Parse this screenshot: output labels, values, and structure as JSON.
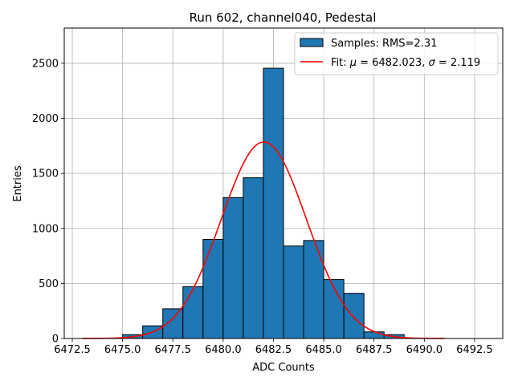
{
  "chart_data": {
    "type": "bar",
    "title": "Run 602, channel040, Pedestal",
    "xlabel": "ADC Counts",
    "ylabel": "Entries",
    "xlim": [
      6472.1,
      6493.9
    ],
    "ylim": [
      0,
      2820
    ],
    "xticks": [
      6472.5,
      6475.0,
      6477.5,
      6480.0,
      6482.5,
      6485.0,
      6487.5,
      6490.0,
      6492.5
    ],
    "xtick_labels": [
      "6472.5",
      "6475.0",
      "6477.5",
      "6480.0",
      "6482.5",
      "6485.0",
      "6487.5",
      "6490.0",
      "6492.5"
    ],
    "yticks": [
      0,
      500,
      1000,
      1500,
      2000,
      2500
    ],
    "ytick_labels": [
      "0",
      "500",
      "1000",
      "1500",
      "2000",
      "2500"
    ],
    "grid": true,
    "legend_position": "top-right",
    "histogram": {
      "name": "Samples: RMS=2.31",
      "color": "#1f77b4",
      "edge_color": "#000000",
      "bins": [
        {
          "x0": 6475,
          "x1": 6476,
          "count": 35
        },
        {
          "x0": 6476,
          "x1": 6477,
          "count": 115
        },
        {
          "x0": 6477,
          "x1": 6478,
          "count": 270
        },
        {
          "x0": 6478,
          "x1": 6479,
          "count": 470
        },
        {
          "x0": 6479,
          "x1": 6480,
          "count": 900
        },
        {
          "x0": 6480,
          "x1": 6481,
          "count": 1280
        },
        {
          "x0": 6481,
          "x1": 6482,
          "count": 1460
        },
        {
          "x0": 6482,
          "x1": 6483,
          "count": 2455
        },
        {
          "x0": 6483,
          "x1": 6484,
          "count": 840
        },
        {
          "x0": 6484,
          "x1": 6485,
          "count": 890
        },
        {
          "x0": 6485,
          "x1": 6486,
          "count": 535
        },
        {
          "x0": 6486,
          "x1": 6487,
          "count": 410
        },
        {
          "x0": 6487,
          "x1": 6488,
          "count": 60
        },
        {
          "x0": 6488,
          "x1": 6489,
          "count": 35
        }
      ]
    },
    "fit": {
      "name_prefix": "Fit: ",
      "mu_symbol": "μ",
      "mu_text": " = 6482.023, ",
      "sigma_symbol": "σ",
      "sigma_text": " = 2.119",
      "color": "#ff0000",
      "type": "gaussian",
      "mu": 6482.023,
      "sigma": 2.119,
      "amplitude": 1785,
      "x_range": [
        6473,
        6491
      ]
    }
  }
}
